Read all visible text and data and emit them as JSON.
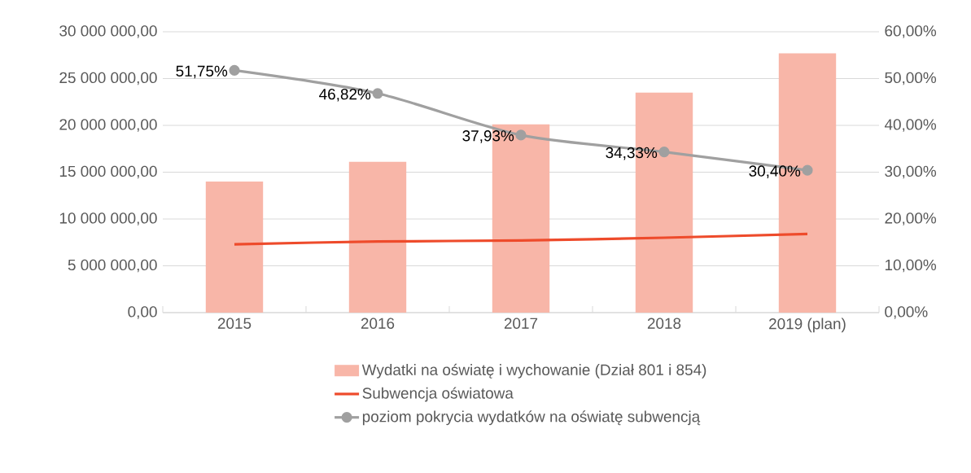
{
  "chart_data": {
    "type": "bar",
    "categories": [
      "2015",
      "2016",
      "2017",
      "2018",
      "2019 (plan)"
    ],
    "series": [
      {
        "name": "Wydatki na oświatę i wychowanie (Dział 801 i 854)",
        "color": "#f8b6a8",
        "values": [
          14000000,
          16100000,
          20100000,
          23500000,
          27700000
        ]
      },
      {
        "name": "Subwencja oświatowa",
        "type": "line",
        "color": "#ee4b2b",
        "marker": "none",
        "values": [
          7300000,
          7600000,
          7700000,
          8000000,
          8400000
        ]
      },
      {
        "name": "poziom pokrycia wydatków na oświatę subwencją",
        "type": "line",
        "axis": "y2",
        "color": "#a0a0a0",
        "marker": "circle",
        "values": [
          51.75,
          46.82,
          37.93,
          34.33,
          30.4
        ],
        "value_labels": [
          "51,75%",
          "46,82%",
          "37,93%",
          "34,33%",
          "30,40%"
        ]
      }
    ],
    "ylim": [
      0,
      30000000
    ],
    "yticks": [
      {
        "value": 0,
        "label": "0,00"
      },
      {
        "value": 5000000,
        "label": "5 000 000,00"
      },
      {
        "value": 10000000,
        "label": "10 000 000,00"
      },
      {
        "value": 15000000,
        "label": "15 000 000,00"
      },
      {
        "value": 20000000,
        "label": "20 000 000,00"
      },
      {
        "value": 25000000,
        "label": "25 000 000,00"
      },
      {
        "value": 30000000,
        "label": "30 000 000,00"
      }
    ],
    "y2lim": [
      0,
      60
    ],
    "y2ticks": [
      {
        "value": 0,
        "label": "0,00%"
      },
      {
        "value": 10,
        "label": "10,00%"
      },
      {
        "value": 20,
        "label": "20,00%"
      },
      {
        "value": 30,
        "label": "30,00%"
      },
      {
        "value": 40,
        "label": "40,00%"
      },
      {
        "value": 50,
        "label": "50,00%"
      },
      {
        "value": 60,
        "label": "60,00%"
      }
    ],
    "grid": "y",
    "legend": "bottom"
  }
}
